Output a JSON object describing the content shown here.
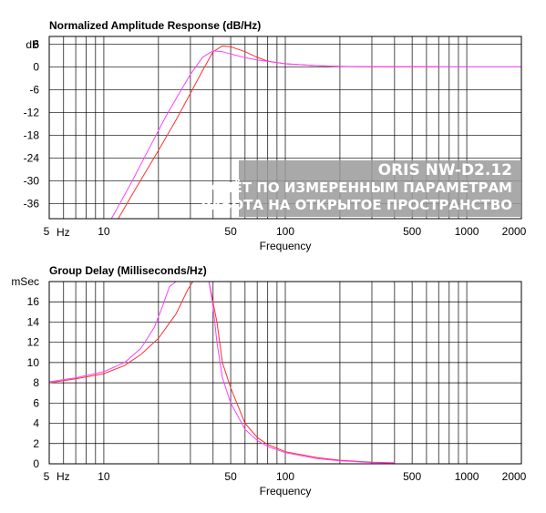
{
  "chart_data": [
    {
      "type": "line",
      "title": "Normalized Amplitude Response (dB/Hz)",
      "xlabel": "Frequency",
      "ylabel": "dB",
      "xscale": "log",
      "xlim": [
        5,
        2000
      ],
      "ylim": [
        -40,
        8
      ],
      "x_ticks": [
        "5",
        "10",
        "50",
        "100",
        "500",
        "1000",
        "2000"
      ],
      "x_unit_label": "Hz",
      "y_ticks": [
        "6",
        "0",
        "-6",
        "-12",
        "-18",
        "-24",
        "-30",
        "-36"
      ],
      "grid": true,
      "series": [
        {
          "color": "#ff3030",
          "x": [
            12,
            15,
            20,
            25,
            30,
            35,
            40,
            45,
            50,
            60,
            70,
            80,
            100,
            150,
            200,
            300,
            500,
            700
          ],
          "y": [
            -40,
            -32,
            -22,
            -14,
            -7,
            -1,
            4,
            5.5,
            5.3,
            4,
            2.5,
            1.5,
            0.8,
            0.3,
            0.1,
            0,
            0,
            0
          ]
        },
        {
          "color": "#ff40ff",
          "x": [
            11,
            14,
            18,
            22,
            26,
            30,
            35,
            40,
            45,
            50,
            60,
            70,
            100,
            150,
            200,
            300,
            500,
            1000,
            2000
          ],
          "y": [
            -40,
            -31,
            -21,
            -13,
            -7,
            -2,
            2.5,
            4.2,
            4,
            3.4,
            2.4,
            1.8,
            0.8,
            0.3,
            0.1,
            0,
            0,
            0,
            0
          ]
        }
      ]
    },
    {
      "type": "line",
      "title": "Group Delay (Milliseconds/Hz)",
      "xlabel": "Frequency",
      "ylabel": "mSec",
      "xscale": "log",
      "xlim": [
        5,
        2000
      ],
      "ylim": [
        0,
        18
      ],
      "x_ticks": [
        "5",
        "10",
        "50",
        "100",
        "500",
        "1000",
        "2000"
      ],
      "x_unit_label": "Hz",
      "y_ticks": [
        "16",
        "14",
        "12",
        "10",
        "8",
        "6",
        "4",
        "2",
        "0"
      ],
      "grid": true,
      "series": [
        {
          "color": "#ff3030",
          "x": [
            5,
            7,
            10,
            13,
            16,
            20,
            25,
            29,
            31,
            33,
            36,
            38,
            42,
            45,
            50,
            60,
            70,
            80,
            100,
            150,
            200,
            300,
            400
          ],
          "y": [
            8,
            8.4,
            8.9,
            9.7,
            10.8,
            12.4,
            14.8,
            17.2,
            18,
            18,
            18,
            18,
            14,
            10,
            7.5,
            4,
            2.6,
            1.9,
            1.2,
            0.6,
            0.35,
            0.15,
            0.1
          ]
        },
        {
          "color": "#ff40ff",
          "x": [
            5,
            7,
            10,
            13,
            16,
            19,
            21,
            23,
            25,
            36,
            38,
            40,
            42,
            45,
            50,
            60,
            70,
            80,
            100,
            150,
            200,
            300,
            400
          ],
          "y": [
            8.1,
            8.5,
            9.1,
            10,
            11.4,
            13.5,
            15.5,
            17.5,
            18,
            18,
            18,
            15.5,
            12,
            8.5,
            6,
            3.4,
            2.3,
            1.7,
            1.1,
            0.5,
            0.3,
            0.12,
            0.08
          ]
        }
      ]
    }
  ],
  "watermark": {
    "title": "ORIS NW-D2.12",
    "line1": "РАСЧЁТ ПО ИЗМЕРЕННЫМ ПАРАМЕТРАМ",
    "line2": "РАБОТА НА ОТКРЫТОЕ ПРОСТРАНСТВО"
  }
}
